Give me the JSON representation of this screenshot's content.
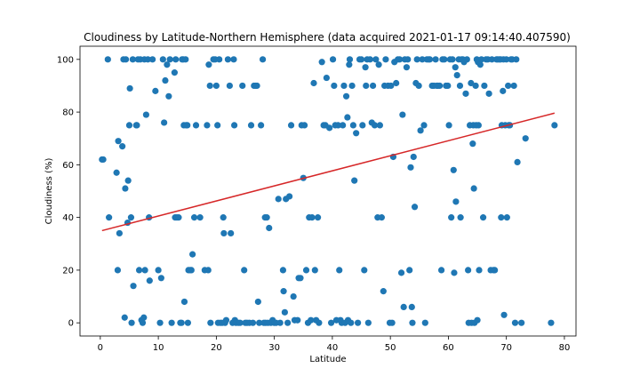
{
  "chart_data": {
    "type": "scatter",
    "title": "Cloudiness by Latitude-Northern Hemisphere (data acquired 2021-01-17 09:14:40.407590)",
    "xlabel": "Latitude",
    "ylabel": "Cloudiness (%)",
    "xlim": [
      -3.5,
      82
    ],
    "ylim": [
      -5,
      105
    ],
    "xticks": [
      0,
      10,
      20,
      30,
      40,
      50,
      60,
      70,
      80
    ],
    "yticks": [
      0,
      20,
      40,
      60,
      80,
      100
    ],
    "grid": false,
    "marker_color": "#1f77b4",
    "regression": {
      "x": [
        0.3,
        78.3
      ],
      "y": [
        35.0,
        79.6
      ],
      "color": "#d62728"
    },
    "points": [
      [
        0.3,
        62
      ],
      [
        0.5,
        62
      ],
      [
        1.3,
        100
      ],
      [
        1.5,
        40
      ],
      [
        2.8,
        57
      ],
      [
        3.0,
        20
      ],
      [
        3.1,
        69
      ],
      [
        3.3,
        34
      ],
      [
        3.8,
        67
      ],
      [
        4.0,
        100
      ],
      [
        4.2,
        2
      ],
      [
        4.3,
        51
      ],
      [
        4.4,
        100
      ],
      [
        4.7,
        38
      ],
      [
        4.8,
        54
      ],
      [
        5.0,
        75
      ],
      [
        5.1,
        89
      ],
      [
        5.3,
        40
      ],
      [
        5.4,
        0
      ],
      [
        5.6,
        100
      ],
      [
        5.7,
        14
      ],
      [
        6.2,
        75
      ],
      [
        6.3,
        75
      ],
      [
        6.5,
        100
      ],
      [
        6.7,
        20
      ],
      [
        6.9,
        100
      ],
      [
        7.1,
        1
      ],
      [
        7.3,
        0
      ],
      [
        7.5,
        2
      ],
      [
        7.6,
        100
      ],
      [
        7.7,
        20
      ],
      [
        7.9,
        79
      ],
      [
        8.2,
        100
      ],
      [
        8.4,
        40
      ],
      [
        8.5,
        16
      ],
      [
        9.0,
        100
      ],
      [
        9.5,
        88
      ],
      [
        10.0,
        20
      ],
      [
        10.3,
        0
      ],
      [
        10.5,
        17
      ],
      [
        10.8,
        100
      ],
      [
        11.0,
        76
      ],
      [
        11.2,
        92
      ],
      [
        11.5,
        98
      ],
      [
        11.8,
        86
      ],
      [
        12.0,
        100
      ],
      [
        12.3,
        0
      ],
      [
        12.8,
        95
      ],
      [
        12.9,
        40
      ],
      [
        13.0,
        100
      ],
      [
        13.2,
        40
      ],
      [
        13.5,
        40
      ],
      [
        13.8,
        0
      ],
      [
        14.0,
        0
      ],
      [
        14.1,
        100
      ],
      [
        14.3,
        100
      ],
      [
        14.4,
        75
      ],
      [
        14.5,
        8
      ],
      [
        14.7,
        100
      ],
      [
        14.8,
        75
      ],
      [
        15.0,
        75
      ],
      [
        15.1,
        0
      ],
      [
        15.2,
        20
      ],
      [
        15.5,
        20
      ],
      [
        15.7,
        20
      ],
      [
        15.9,
        26
      ],
      [
        16.2,
        40
      ],
      [
        16.5,
        75
      ],
      [
        17.2,
        40
      ],
      [
        18.0,
        20
      ],
      [
        18.4,
        75
      ],
      [
        18.6,
        20
      ],
      [
        18.7,
        98
      ],
      [
        18.9,
        90
      ],
      [
        19.0,
        0
      ],
      [
        19.5,
        100
      ],
      [
        19.8,
        100
      ],
      [
        20.0,
        90
      ],
      [
        20.2,
        75
      ],
      [
        20.3,
        0
      ],
      [
        20.5,
        100
      ],
      [
        20.7,
        0
      ],
      [
        21.0,
        0
      ],
      [
        21.2,
        40
      ],
      [
        21.3,
        34
      ],
      [
        21.5,
        0
      ],
      [
        21.7,
        1
      ],
      [
        22.0,
        100
      ],
      [
        22.3,
        90
      ],
      [
        22.5,
        34
      ],
      [
        22.8,
        0
      ],
      [
        23.0,
        100
      ],
      [
        23.1,
        75
      ],
      [
        23.2,
        1
      ],
      [
        23.4,
        0
      ],
      [
        23.8,
        0
      ],
      [
        24.1,
        0
      ],
      [
        24.5,
        90
      ],
      [
        24.8,
        20
      ],
      [
        25.0,
        0
      ],
      [
        25.3,
        0
      ],
      [
        25.7,
        0
      ],
      [
        26.0,
        75
      ],
      [
        26.3,
        0
      ],
      [
        26.5,
        90
      ],
      [
        26.8,
        90
      ],
      [
        27.0,
        90
      ],
      [
        27.2,
        8
      ],
      [
        27.4,
        0
      ],
      [
        27.7,
        75
      ],
      [
        28.0,
        100
      ],
      [
        28.2,
        0
      ],
      [
        28.4,
        40
      ],
      [
        28.5,
        0
      ],
      [
        28.7,
        40
      ],
      [
        28.9,
        0
      ],
      [
        29.1,
        36
      ],
      [
        29.4,
        0
      ],
      [
        29.7,
        1
      ],
      [
        30.0,
        0
      ],
      [
        30.3,
        0
      ],
      [
        30.7,
        47
      ],
      [
        31.0,
        0
      ],
      [
        31.5,
        20
      ],
      [
        31.6,
        12
      ],
      [
        31.8,
        4
      ],
      [
        32.0,
        47
      ],
      [
        32.3,
        0
      ],
      [
        32.6,
        48
      ],
      [
        32.9,
        75
      ],
      [
        33.3,
        10
      ],
      [
        33.5,
        1
      ],
      [
        34.0,
        1
      ],
      [
        34.2,
        17
      ],
      [
        34.5,
        17
      ],
      [
        34.7,
        75
      ],
      [
        35.0,
        55
      ],
      [
        35.2,
        75
      ],
      [
        35.5,
        20
      ],
      [
        35.8,
        0
      ],
      [
        36.0,
        40
      ],
      [
        36.3,
        1
      ],
      [
        36.5,
        40
      ],
      [
        36.8,
        91
      ],
      [
        37.0,
        20
      ],
      [
        37.2,
        1
      ],
      [
        37.5,
        40
      ],
      [
        37.7,
        0
      ],
      [
        38.2,
        99
      ],
      [
        38.5,
        75
      ],
      [
        38.8,
        75
      ],
      [
        39.0,
        93
      ],
      [
        39.5,
        74
      ],
      [
        39.8,
        0
      ],
      [
        40.1,
        100
      ],
      [
        40.3,
        90
      ],
      [
        40.5,
        75
      ],
      [
        40.7,
        1
      ],
      [
        41.0,
        75
      ],
      [
        41.2,
        20
      ],
      [
        41.4,
        1
      ],
      [
        41.6,
        0
      ],
      [
        41.8,
        75
      ],
      [
        42.0,
        90
      ],
      [
        42.2,
        0
      ],
      [
        42.4,
        86
      ],
      [
        42.6,
        78
      ],
      [
        42.7,
        1
      ],
      [
        42.9,
        98
      ],
      [
        43.0,
        100
      ],
      [
        43.2,
        0
      ],
      [
        43.4,
        90
      ],
      [
        43.6,
        75
      ],
      [
        43.8,
        54
      ],
      [
        44.1,
        72
      ],
      [
        44.4,
        0
      ],
      [
        44.7,
        100
      ],
      [
        45.0,
        100
      ],
      [
        45.2,
        75
      ],
      [
        45.5,
        20
      ],
      [
        45.7,
        97
      ],
      [
        45.8,
        90
      ],
      [
        46.0,
        100
      ],
      [
        46.2,
        0
      ],
      [
        46.5,
        100
      ],
      [
        46.8,
        76
      ],
      [
        47.0,
        90
      ],
      [
        47.3,
        75
      ],
      [
        47.5,
        100
      ],
      [
        47.8,
        40
      ],
      [
        48.0,
        98
      ],
      [
        48.2,
        75
      ],
      [
        48.5,
        40
      ],
      [
        48.8,
        12
      ],
      [
        49.0,
        90
      ],
      [
        49.2,
        100
      ],
      [
        49.6,
        90
      ],
      [
        49.9,
        0
      ],
      [
        50.1,
        90
      ],
      [
        50.3,
        0
      ],
      [
        50.5,
        63
      ],
      [
        50.7,
        99
      ],
      [
        51.0,
        91
      ],
      [
        51.3,
        100
      ],
      [
        51.6,
        100
      ],
      [
        51.9,
        19
      ],
      [
        52.1,
        79
      ],
      [
        52.3,
        6
      ],
      [
        52.5,
        100
      ],
      [
        52.8,
        97
      ],
      [
        53.0,
        100
      ],
      [
        53.3,
        20
      ],
      [
        53.5,
        59
      ],
      [
        53.7,
        6
      ],
      [
        53.8,
        0
      ],
      [
        54.0,
        63
      ],
      [
        54.2,
        44
      ],
      [
        54.4,
        91
      ],
      [
        54.6,
        100
      ],
      [
        54.9,
        90
      ],
      [
        55.2,
        73
      ],
      [
        55.5,
        100
      ],
      [
        55.8,
        75
      ],
      [
        56.0,
        0
      ],
      [
        56.3,
        100
      ],
      [
        56.6,
        100
      ],
      [
        56.8,
        100
      ],
      [
        57.2,
        90
      ],
      [
        57.5,
        90
      ],
      [
        57.8,
        100
      ],
      [
        58.0,
        90
      ],
      [
        58.2,
        90
      ],
      [
        58.5,
        90
      ],
      [
        58.8,
        20
      ],
      [
        59.0,
        100
      ],
      [
        59.3,
        100
      ],
      [
        59.6,
        90
      ],
      [
        59.9,
        90
      ],
      [
        60.1,
        75
      ],
      [
        60.3,
        100
      ],
      [
        60.5,
        40
      ],
      [
        60.7,
        100
      ],
      [
        60.9,
        58
      ],
      [
        61.0,
        19
      ],
      [
        61.2,
        97
      ],
      [
        61.3,
        46
      ],
      [
        61.5,
        94
      ],
      [
        61.8,
        100
      ],
      [
        62.0,
        90
      ],
      [
        62.1,
        40
      ],
      [
        62.3,
        100
      ],
      [
        62.5,
        100
      ],
      [
        62.7,
        99
      ],
      [
        63.0,
        87
      ],
      [
        63.2,
        100
      ],
      [
        63.4,
        20
      ],
      [
        63.5,
        0
      ],
      [
        63.7,
        75
      ],
      [
        63.9,
        91
      ],
      [
        64.0,
        0
      ],
      [
        64.2,
        68
      ],
      [
        64.3,
        75
      ],
      [
        64.4,
        51
      ],
      [
        64.5,
        0
      ],
      [
        64.7,
        90
      ],
      [
        64.8,
        75
      ],
      [
        64.9,
        100
      ],
      [
        65.0,
        1
      ],
      [
        65.1,
        99
      ],
      [
        65.2,
        75
      ],
      [
        65.3,
        20
      ],
      [
        65.5,
        98
      ],
      [
        65.7,
        100
      ],
      [
        66.0,
        40
      ],
      [
        66.2,
        90
      ],
      [
        66.5,
        100
      ],
      [
        66.8,
        100
      ],
      [
        67.0,
        87
      ],
      [
        67.3,
        20
      ],
      [
        67.5,
        100
      ],
      [
        67.8,
        20
      ],
      [
        68.0,
        20
      ],
      [
        68.3,
        100
      ],
      [
        68.5,
        100
      ],
      [
        68.8,
        100
      ],
      [
        69.0,
        100
      ],
      [
        69.1,
        40
      ],
      [
        69.2,
        75
      ],
      [
        69.4,
        88
      ],
      [
        69.5,
        100
      ],
      [
        69.6,
        3
      ],
      [
        69.8,
        75
      ],
      [
        70.0,
        100
      ],
      [
        70.1,
        40
      ],
      [
        70.3,
        90
      ],
      [
        70.4,
        75
      ],
      [
        70.6,
        75
      ],
      [
        70.8,
        100
      ],
      [
        71.0,
        100
      ],
      [
        71.3,
        90
      ],
      [
        71.5,
        0
      ],
      [
        71.7,
        100
      ],
      [
        71.9,
        61
      ],
      [
        72.6,
        0
      ],
      [
        73.3,
        70
      ],
      [
        77.7,
        0
      ],
      [
        78.3,
        75
      ]
    ]
  }
}
